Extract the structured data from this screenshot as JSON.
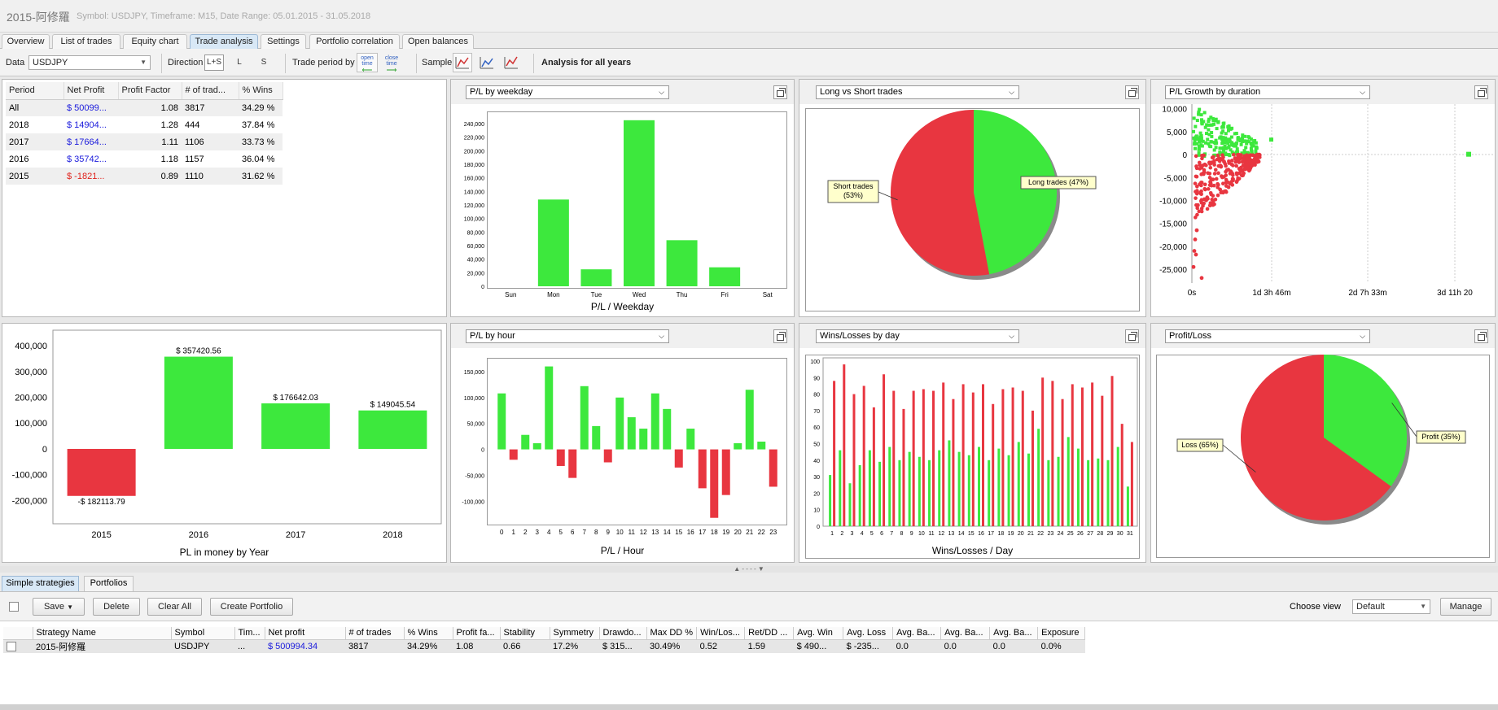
{
  "app": {
    "title": "2015-阿修羅",
    "subtitle": "Symbol: USDJPY, Timeframe: M15, Date Range: 05.01.2015 - 31.05.2018"
  },
  "tabs": [
    "Overview",
    "List of trades",
    "Equity chart",
    "Trade analysis",
    "Settings",
    "Portfolio correlation",
    "Open balances"
  ],
  "toolbar": {
    "data_label": "Data",
    "data_value": "USDJPY",
    "direction_label": "Direction",
    "dir_both": "L+S",
    "dir_long": "L",
    "dir_short": "S",
    "period_label": "Trade period by",
    "open_time": "open time",
    "close_time": "close time",
    "sample_label": "Sample",
    "analysis_title": "Analysis for all years"
  },
  "period_table": {
    "headers": [
      "Period",
      "Net Profit",
      "Profit Factor",
      "# of trad...",
      "% Wins"
    ],
    "rows": [
      [
        "All",
        "$ 50099...",
        "1.08",
        "3817",
        "34.29 %"
      ],
      [
        "2018",
        "$ 14904...",
        "1.28",
        "444",
        "37.84 %"
      ],
      [
        "2017",
        "$ 17664...",
        "1.11",
        "1106",
        "33.73 %"
      ],
      [
        "2016",
        "$ 35742...",
        "1.18",
        "1157",
        "36.04 %"
      ],
      [
        "2015",
        "$ -1821...",
        "0.89",
        "1110",
        "31.62 %"
      ]
    ]
  },
  "colors": {
    "profit": "#3de83d",
    "loss": "#e83640",
    "pos_text": "#1a1adc",
    "neg_text": "#e0201a"
  },
  "panels": {
    "weekday": {
      "select": "P/L by weekday",
      "caption": "P/L / Weekday"
    },
    "longshort": {
      "select": "Long vs Short trades"
    },
    "growth": {
      "select": "P/L Growth by duration"
    },
    "year": {
      "caption": "PL in money by Year"
    },
    "hour": {
      "select": "P/L by hour",
      "caption": "P/L / Hour"
    },
    "winloss": {
      "select": "Wins/Losses by day",
      "caption": "Wins/Losses / Day"
    },
    "profitloss": {
      "select": "Profit/Loss"
    }
  },
  "chart_data": [
    {
      "type": "bar",
      "id": "weekday",
      "categories": [
        "Sun",
        "Mon",
        "Tue",
        "Wed",
        "Thu",
        "Fri",
        "Sat"
      ],
      "values": [
        0,
        128000,
        25000,
        245000,
        68000,
        28000,
        0
      ],
      "ylim": [
        0,
        240000
      ],
      "yticks": [
        "0",
        "20,000",
        "40,000",
        "60,000",
        "80,000",
        "100,000",
        "120,000",
        "140,000",
        "160,000",
        "180,000",
        "200,000",
        "220,000",
        "240,000"
      ],
      "xlabel": "P/L / Weekday"
    },
    {
      "type": "pie",
      "id": "longshort",
      "slices": [
        {
          "label": "Long trades (47%)",
          "value": 47,
          "color": "#3de83d"
        },
        {
          "label": "Short trades (53%)",
          "value": 53,
          "color": "#e83640"
        }
      ]
    },
    {
      "type": "scatter",
      "id": "growth",
      "yticks": [
        "10,000",
        "5,000",
        "0",
        "-5,000",
        "-10,000",
        "-15,000",
        "-20,000",
        "-25,000"
      ],
      "xticks": [
        "0s",
        "1d 3h 46m",
        "2d 7h 33m",
        "3d 11h 20"
      ],
      "ylim": [
        -28000,
        11000
      ]
    },
    {
      "type": "bar",
      "id": "year",
      "categories": [
        "2015",
        "2016",
        "2017",
        "2018"
      ],
      "values": [
        -182113.79,
        357420.56,
        176642.03,
        149045.54
      ],
      "data_labels": [
        "-$ 182113.79",
        "$ 357420.56",
        "$ 176642.03",
        "$ 149045.54"
      ],
      "ylim": [
        -290000,
        460000
      ],
      "yticks": [
        "400,000",
        "300,000",
        "200,000",
        "100,000",
        "0",
        "-100,000",
        "-200,000"
      ],
      "xlabel": "PL in money by Year"
    },
    {
      "type": "bar",
      "id": "hour",
      "categories": [
        "0",
        "1",
        "2",
        "3",
        "4",
        "5",
        "6",
        "7",
        "8",
        "9",
        "10",
        "11",
        "12",
        "13",
        "14",
        "15",
        "16",
        "17",
        "18",
        "19",
        "20",
        "21",
        "22",
        "23"
      ],
      "values": [
        108000,
        -20000,
        28000,
        12000,
        160000,
        -32000,
        -55000,
        122000,
        45000,
        -25000,
        100000,
        62000,
        40000,
        108000,
        78000,
        -35000,
        40000,
        -75000,
        -132000,
        -88000,
        12000,
        115000,
        15000,
        -72000
      ],
      "ylim": [
        -145000,
        175000
      ],
      "yticks": [
        "150,000",
        "100,000",
        "50,000",
        "0",
        "-50,000",
        "-100,000"
      ],
      "xlabel": "P/L / Hour"
    },
    {
      "type": "bar",
      "id": "winloss",
      "categories": [
        "1",
        "2",
        "3",
        "4",
        "5",
        "6",
        "7",
        "8",
        "9",
        "10",
        "11",
        "12",
        "13",
        "14",
        "15",
        "16",
        "17",
        "18",
        "19",
        "20",
        "21",
        "22",
        "23",
        "24",
        "25",
        "26",
        "27",
        "28",
        "29",
        "30",
        "31"
      ],
      "series": [
        {
          "name": "",
          "color": "#3de83d",
          "values": [
            31,
            46,
            26,
            37,
            46,
            39,
            48,
            40,
            45,
            42,
            40,
            46,
            52,
            45,
            43,
            48,
            40,
            47,
            43,
            51,
            44,
            59,
            40,
            42,
            54,
            47,
            40,
            41,
            40,
            48,
            24
          ]
        },
        {
          "name": "",
          "color": "#e83640",
          "values": [
            88,
            98,
            80,
            85,
            72,
            92,
            82,
            71,
            82,
            83,
            82,
            87,
            77,
            86,
            81,
            86,
            74,
            83,
            84,
            82,
            70,
            90,
            88,
            77,
            86,
            84,
            87,
            79,
            91,
            62,
            51
          ]
        }
      ],
      "ylim": [
        0,
        100
      ],
      "yticks": [
        "100",
        "90",
        "80",
        "70",
        "60",
        "50",
        "40",
        "30",
        "20",
        "10",
        "0"
      ],
      "xlabel": "Wins/Losses / Day"
    },
    {
      "type": "pie",
      "id": "profitloss",
      "slices": [
        {
          "label": "Profit (35%)",
          "value": 35,
          "color": "#3de83d"
        },
        {
          "label": "Loss (65%)",
          "value": 65,
          "color": "#e83640"
        }
      ]
    }
  ],
  "bottom": {
    "tabs": [
      "Simple strategies",
      "Portfolios"
    ],
    "buttons": {
      "save": "Save",
      "delete": "Delete",
      "clear": "Clear All",
      "create": "Create Portfolio",
      "manage": "Manage"
    },
    "choose_view_label": "Choose view",
    "view_value": "Default",
    "headers": [
      "Strategy Name",
      "Symbol",
      "Tim...",
      "Net profit",
      "# of trades",
      "% Wins",
      "Profit fa...",
      "Stability",
      "Symmetry",
      "Drawdo...",
      "Max DD %",
      "Win/Los...",
      "Ret/DD ...",
      "Avg. Win",
      "Avg. Loss",
      "Avg. Ba...",
      "Avg. Ba...",
      "Avg. Ba...",
      "Exposure"
    ],
    "row": [
      "2015-阿修羅",
      "USDJPY",
      "...",
      "$ 500994.34",
      "3817",
      "34.29%",
      "1.08",
      "0.66",
      "17.2%",
      "$ 315...",
      "30.49%",
      "0.52",
      "1.59",
      "$ 490...",
      "$ -235...",
      "0.0",
      "0.0",
      "0.0",
      "0.0%"
    ]
  }
}
